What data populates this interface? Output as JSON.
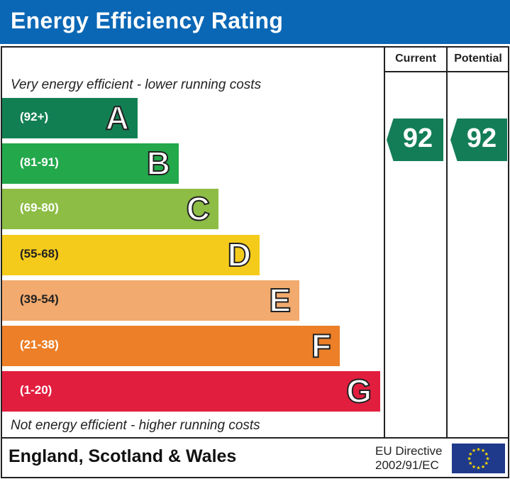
{
  "title": "Energy Efficiency Rating",
  "columns": {
    "current": "Current",
    "potential": "Potential"
  },
  "top_note": "Very energy efficient - lower running costs",
  "bottom_note": "Not energy efficient - higher running costs",
  "footer": {
    "region": "England, Scotland & Wales",
    "directive_line1": "EU Directive",
    "directive_line2": "2002/91/EC"
  },
  "chart_data": {
    "type": "bar",
    "bands": [
      {
        "letter": "A",
        "range": "(92+)",
        "color": "#127f53"
      },
      {
        "letter": "B",
        "range": "(81-91)",
        "color": "#23a84b"
      },
      {
        "letter": "C",
        "range": "(69-80)",
        "color": "#8dbd45"
      },
      {
        "letter": "D",
        "range": "(55-68)",
        "color": "#f5cb1b"
      },
      {
        "letter": "E",
        "range": "(39-54)",
        "color": "#f2aa6e"
      },
      {
        "letter": "F",
        "range": "(21-38)",
        "color": "#ec7f27"
      },
      {
        "letter": "G",
        "range": "(1-20)",
        "color": "#e21e3f"
      }
    ],
    "current": {
      "value": "92",
      "band": "A"
    },
    "potential": {
      "value": "92",
      "band": "A"
    }
  }
}
